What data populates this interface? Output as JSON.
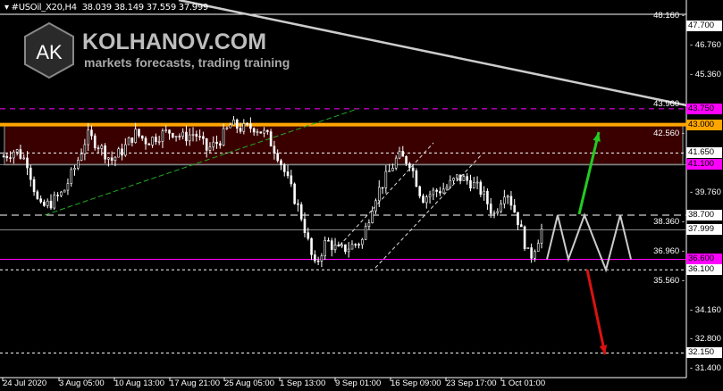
{
  "header": {
    "symbol": "#USOil_X20,H4",
    "ohlc": "38.039 38.149 37.559 37.999"
  },
  "logo": {
    "mark": "AK",
    "title": "KOLHANOV.COM",
    "subtitle": "markets forecasts, trading training"
  },
  "price_axis": {
    "ticks": [
      "48.160",
      "46.760",
      "45.360",
      "43.960",
      "42.560",
      "39.760",
      "38.360",
      "36.960",
      "35.560",
      "34.160",
      "32.800",
      "31.400"
    ],
    "badges": [
      {
        "value": "47.700",
        "bg": "#ffffff",
        "fg": "#000000"
      },
      {
        "value": "43.750",
        "bg": "#ff00ff",
        "fg": "#000000"
      },
      {
        "value": "43.000",
        "bg": "#ffa500",
        "fg": "#000000"
      },
      {
        "value": "41.650",
        "bg": "#ffffff",
        "fg": "#000000"
      },
      {
        "value": "41.100",
        "bg": "#ff00ff",
        "fg": "#000000"
      },
      {
        "value": "38.700",
        "bg": "#ffffff",
        "fg": "#000000"
      },
      {
        "value": "37.999",
        "bg": "#ffffff",
        "fg": "#000000"
      },
      {
        "value": "36.600",
        "bg": "#ff00ff",
        "fg": "#000000"
      },
      {
        "value": "36.100",
        "bg": "#ffffff",
        "fg": "#000000"
      },
      {
        "value": "32.150",
        "bg": "#ffffff",
        "fg": "#000000"
      }
    ]
  },
  "time_axis": {
    "ticks": [
      "24 Jul 2020",
      "3 Aug 05:00",
      "10 Aug 13:00",
      "17 Aug 21:00",
      "25 Aug 05:00",
      "1 Sep 13:00",
      "9 Sep 01:00",
      "16 Sep 09:00",
      "23 Sep 17:00",
      "1 Oct 01:00"
    ]
  },
  "chart_data": {
    "type": "candlestick",
    "ylim": [
      31.4,
      48.16
    ],
    "approx_close_path": [
      41.5,
      41.8,
      41.2,
      39.0,
      39.3,
      39.8,
      41.0,
      42.5,
      42.0,
      41.3,
      41.8,
      42.6,
      42.2,
      42.5,
      42.7,
      42.4,
      42.6,
      41.8,
      42.2,
      43.0,
      42.8,
      42.9,
      42.5,
      41.5,
      40.0,
      38.5,
      36.2,
      37.5,
      37.0,
      37.2,
      37.5,
      39.5,
      40.5,
      41.5,
      41.2,
      39.5,
      39.8,
      40.0,
      40.5,
      40.3,
      39.8,
      38.7,
      40.0,
      38.5,
      36.6,
      38.0
    ],
    "levels": {
      "resistance_zone": [
        41.1,
        43.0
      ],
      "lines": [
        47.7,
        43.75,
        43.0,
        41.65,
        41.1,
        38.7,
        37.999,
        36.6,
        36.1,
        32.15
      ]
    },
    "colors": {
      "candles": "#ffffff",
      "zone": "#3a0000",
      "up_arrow": "#22cc22",
      "down_arrow": "#dd1111",
      "trendline": "#22aa22"
    }
  }
}
